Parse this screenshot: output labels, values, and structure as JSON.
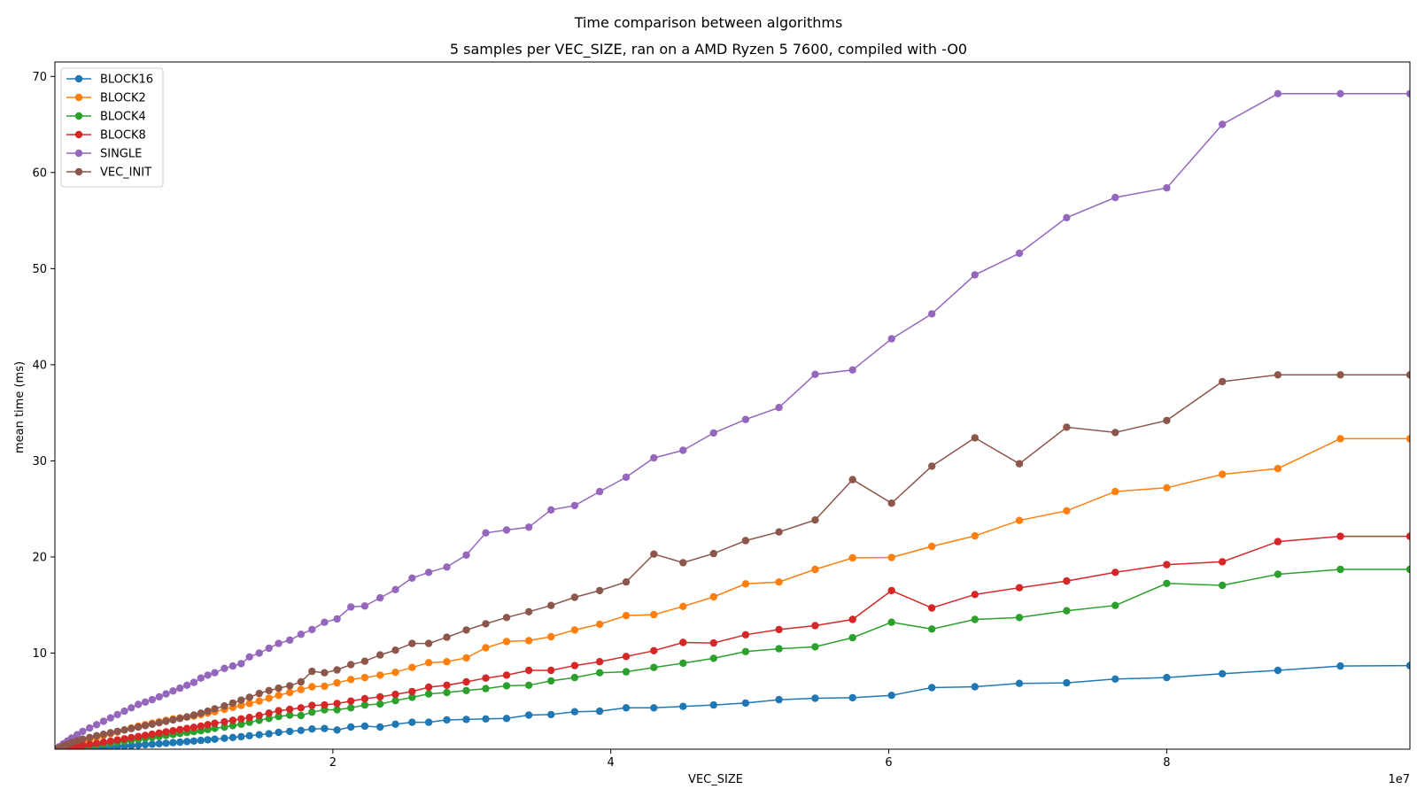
{
  "chart_data": {
    "type": "line",
    "title": "Time comparison between algorithms",
    "subtitle": "5 samples per VEC_SIZE, ran on a AMD Ryzen 5 7600, compiled with -O0",
    "xlabel": "VEC_SIZE",
    "ylabel": "mean time (ms)",
    "x_offset_label": "1e7",
    "xlim": [
      0,
      97500000
    ],
    "ylim": [
      0,
      71.5
    ],
    "x_ticks": [
      20000000,
      40000000,
      60000000,
      80000000
    ],
    "x_tick_labels": [
      "2",
      "4",
      "6",
      "8"
    ],
    "y_ticks": [
      10,
      20,
      30,
      40,
      50,
      60,
      70
    ],
    "y_tick_labels": [
      "10",
      "20",
      "30",
      "40",
      "50",
      "60",
      "70"
    ],
    "grid": false,
    "legend_position": "top-left",
    "x": [
      0,
      300000,
      600000,
      900000,
      1200000,
      1600000,
      2000000,
      2500000,
      3000000,
      3500000,
      4000000,
      4500000,
      5000000,
      5500000,
      6000000,
      6500000,
      7000000,
      7500000,
      8000000,
      8500000,
      9000000,
      9500000,
      10000000,
      10500000,
      11000000,
      11500000,
      12200000,
      12800000,
      13400000,
      14000000,
      14700000,
      15400000,
      16100000,
      16900000,
      17700000,
      18500000,
      19400000,
      20300000,
      21300000,
      22300000,
      23400000,
      24500000,
      25700000,
      26900000,
      28200000,
      29600000,
      31000000,
      32500000,
      34100000,
      35700000,
      37400000,
      39200000,
      41100000,
      43100000,
      45200000,
      47400000,
      49700000,
      52100000,
      54700000,
      57400000,
      60200000,
      63100000,
      66200000,
      69400000,
      72800000,
      76300000,
      80000000,
      84000000,
      88000000,
      92500000,
      97500000
    ],
    "series": [
      {
        "name": "BLOCK16",
        "color": "#1f77b4",
        "values": [
          0.0,
          0.01,
          0.02,
          0.04,
          0.05,
          0.07,
          0.1,
          0.13,
          0.16,
          0.2,
          0.24,
          0.28,
          0.32,
          0.37,
          0.42,
          0.47,
          0.52,
          0.57,
          0.62,
          0.68,
          0.73,
          0.79,
          0.85,
          0.91,
          0.98,
          1.04,
          1.13,
          1.22,
          1.3,
          1.4,
          1.5,
          1.6,
          1.75,
          1.85,
          1.95,
          2.1,
          2.15,
          2.0,
          2.3,
          2.4,
          2.3,
          2.6,
          2.8,
          2.8,
          3.05,
          3.1,
          3.15,
          3.2,
          3.55,
          3.6,
          3.9,
          3.95,
          4.3,
          4.3,
          4.45,
          4.6,
          4.8,
          5.15,
          5.3,
          5.35,
          5.6,
          6.4,
          6.5,
          6.85,
          6.9,
          7.3,
          7.45,
          7.85,
          8.2,
          8.65,
          8.7
        ]
      },
      {
        "name": "BLOCK2",
        "color": "#ff7f0e",
        "values": [
          0.0,
          0.13,
          0.25,
          0.37,
          0.5,
          0.65,
          0.8,
          1.0,
          1.2,
          1.4,
          1.6,
          1.8,
          2.0,
          2.2,
          2.4,
          2.55,
          2.7,
          2.85,
          3.0,
          3.15,
          3.25,
          3.35,
          3.45,
          3.6,
          3.75,
          3.9,
          4.15,
          4.35,
          4.55,
          4.75,
          5.0,
          5.3,
          5.6,
          5.9,
          6.2,
          6.5,
          6.55,
          6.9,
          7.25,
          7.45,
          7.7,
          8.0,
          8.5,
          9.0,
          9.1,
          9.5,
          10.55,
          11.2,
          11.3,
          11.7,
          12.4,
          13.0,
          13.9,
          14.0,
          14.85,
          15.85,
          17.2,
          17.4,
          18.7,
          19.9,
          19.95,
          21.1,
          22.2,
          23.8,
          24.8,
          26.8,
          27.2,
          28.6,
          29.2,
          32.3,
          32.3
        ]
      },
      {
        "name": "BLOCK4",
        "color": "#2ca02c",
        "values": [
          0.0,
          0.03,
          0.07,
          0.11,
          0.16,
          0.22,
          0.29,
          0.37,
          0.45,
          0.54,
          0.63,
          0.73,
          0.83,
          0.93,
          1.03,
          1.13,
          1.23,
          1.33,
          1.43,
          1.53,
          1.63,
          1.73,
          1.83,
          1.93,
          2.05,
          2.17,
          2.3,
          2.45,
          2.6,
          2.8,
          3.0,
          3.2,
          3.4,
          3.55,
          3.5,
          3.85,
          4.1,
          4.1,
          4.3,
          4.6,
          4.7,
          5.05,
          5.4,
          5.75,
          5.9,
          6.1,
          6.3,
          6.6,
          6.65,
          7.1,
          7.45,
          7.95,
          8.05,
          8.5,
          8.95,
          9.45,
          10.15,
          10.45,
          10.65,
          11.6,
          13.2,
          12.5,
          13.5,
          13.7,
          14.4,
          14.95,
          17.25,
          17.05,
          18.2,
          18.7,
          18.7
        ]
      },
      {
        "name": "BLOCK8",
        "color": "#d62728",
        "values": [
          0.0,
          0.05,
          0.1,
          0.16,
          0.23,
          0.31,
          0.4,
          0.5,
          0.61,
          0.72,
          0.84,
          0.96,
          1.08,
          1.2,
          1.32,
          1.44,
          1.56,
          1.68,
          1.8,
          1.92,
          2.04,
          2.16,
          2.28,
          2.4,
          2.55,
          2.7,
          2.85,
          3.0,
          3.15,
          3.3,
          3.5,
          3.75,
          4.0,
          4.15,
          4.3,
          4.55,
          4.6,
          4.75,
          5.0,
          5.25,
          5.45,
          5.7,
          6.0,
          6.45,
          6.65,
          7.0,
          7.4,
          7.7,
          8.2,
          8.2,
          8.7,
          9.1,
          9.65,
          10.25,
          11.1,
          11.05,
          11.9,
          12.45,
          12.85,
          13.5,
          16.5,
          14.7,
          16.1,
          16.8,
          17.5,
          18.4,
          19.2,
          19.5,
          21.6,
          22.15,
          22.15
        ]
      },
      {
        "name": "SINGLE",
        "color": "#9467bd",
        "values": [
          0.0,
          0.25,
          0.55,
          0.85,
          1.15,
          1.5,
          1.85,
          2.2,
          2.55,
          2.9,
          3.25,
          3.6,
          3.95,
          4.3,
          4.65,
          4.9,
          5.15,
          5.45,
          5.75,
          6.05,
          6.35,
          6.65,
          6.95,
          7.4,
          7.7,
          7.95,
          8.4,
          8.65,
          8.9,
          9.6,
          10.0,
          10.5,
          11.0,
          11.35,
          11.95,
          12.45,
          13.2,
          13.55,
          14.8,
          14.9,
          15.75,
          16.6,
          17.8,
          18.4,
          18.95,
          20.2,
          22.5,
          22.8,
          23.1,
          24.9,
          25.35,
          26.8,
          28.3,
          30.3,
          31.1,
          32.9,
          34.3,
          35.55,
          39.0,
          39.45,
          42.7,
          45.3,
          49.35,
          51.6,
          55.3,
          57.4,
          58.4,
          65.0,
          68.2,
          68.2,
          68.2
        ]
      },
      {
        "name": "VEC_INIT",
        "color": "#8c564b",
        "values": [
          0.0,
          0.15,
          0.32,
          0.5,
          0.68,
          0.86,
          1.04,
          1.22,
          1.4,
          1.55,
          1.7,
          1.85,
          2.0,
          2.15,
          2.3,
          2.45,
          2.6,
          2.75,
          2.9,
          3.05,
          3.2,
          3.35,
          3.55,
          3.75,
          3.95,
          4.2,
          4.5,
          4.8,
          5.1,
          5.4,
          5.8,
          6.1,
          6.35,
          6.6,
          7.0,
          8.1,
          7.95,
          8.25,
          8.8,
          9.15,
          9.8,
          10.3,
          11.0,
          11.0,
          11.65,
          12.4,
          13.05,
          13.7,
          14.3,
          14.95,
          15.8,
          16.5,
          17.4,
          20.3,
          19.4,
          20.35,
          21.7,
          22.6,
          23.85,
          28.05,
          25.6,
          29.45,
          32.4,
          29.7,
          33.5,
          32.95,
          34.2,
          38.25,
          38.95,
          38.95,
          38.95
        ]
      }
    ]
  }
}
